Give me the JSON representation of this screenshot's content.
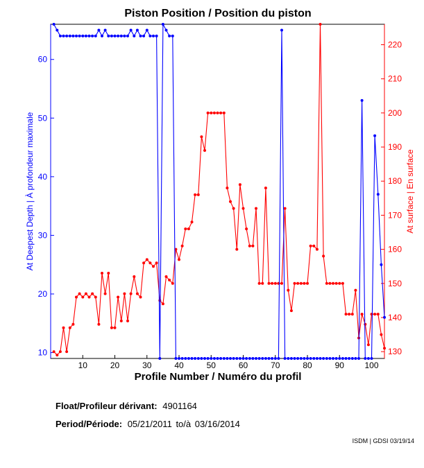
{
  "chart_data": {
    "type": "line",
    "title": "Piston Position / Position du piston",
    "xlabel": "Profile Number / Numéro du profil",
    "ylabel_left": "At Deepest Depth | À profondeur maximale",
    "ylabel_right": "At surface | En surface",
    "xlim": [
      0,
      104
    ],
    "ylim_left": [
      9,
      66
    ],
    "ylim_right": [
      128,
      226
    ],
    "x_ticks": [
      "10",
      "20",
      "30",
      "40",
      "50",
      "60",
      "70",
      "80",
      "90",
      "100"
    ],
    "y_left_ticks": [
      "10",
      "20",
      "30",
      "40",
      "50",
      "60"
    ],
    "y_right_ticks": [
      "130",
      "140",
      "150",
      "160",
      "170",
      "180",
      "190",
      "200",
      "210",
      "220"
    ],
    "grid": false,
    "colors": {
      "left_series": "#0000ff",
      "right_series": "#ff0000",
      "axis": "#000000"
    },
    "series": [
      {
        "name": "At Deepest Depth",
        "axis": "left",
        "x": [
          1,
          2,
          3,
          4,
          5,
          6,
          7,
          8,
          9,
          10,
          11,
          12,
          13,
          14,
          15,
          16,
          17,
          18,
          19,
          20,
          21,
          22,
          23,
          24,
          25,
          26,
          27,
          28,
          29,
          30,
          31,
          32,
          33,
          34,
          35,
          36,
          37,
          38,
          39,
          40,
          41,
          42,
          43,
          44,
          45,
          46,
          47,
          48,
          49,
          50,
          51,
          52,
          53,
          54,
          55,
          56,
          57,
          58,
          59,
          60,
          61,
          62,
          63,
          64,
          65,
          66,
          67,
          68,
          69,
          70,
          71,
          72,
          73,
          74,
          75,
          76,
          77,
          78,
          79,
          80,
          81,
          82,
          83,
          84,
          85,
          86,
          87,
          88,
          89,
          90,
          91,
          92,
          93,
          94,
          95,
          96,
          97,
          98,
          99,
          100,
          101,
          102,
          103,
          104
        ],
        "values": [
          66,
          65,
          64,
          64,
          64,
          64,
          64,
          64,
          64,
          64,
          64,
          64,
          64,
          64,
          65,
          64,
          65,
          64,
          64,
          64,
          64,
          64,
          64,
          64,
          65,
          64,
          65,
          64,
          64,
          65,
          64,
          64,
          64,
          9,
          66,
          65,
          64,
          64,
          9,
          9,
          9,
          9,
          9,
          9,
          9,
          9,
          9,
          9,
          9,
          9,
          9,
          9,
          9,
          9,
          9,
          9,
          9,
          9,
          9,
          9,
          9,
          9,
          9,
          9,
          9,
          9,
          9,
          9,
          9,
          9,
          9,
          65,
          9,
          9,
          9,
          9,
          9,
          9,
          9,
          9,
          9,
          9,
          9,
          9,
          9,
          9,
          9,
          9,
          9,
          9,
          9,
          9,
          9,
          9,
          9,
          9,
          53,
          9,
          9,
          9,
          47,
          37,
          25,
          16
        ]
      },
      {
        "name": "At surface",
        "axis": "right",
        "x": [
          1,
          2,
          3,
          4,
          5,
          6,
          7,
          8,
          9,
          10,
          11,
          12,
          13,
          14,
          15,
          16,
          17,
          18,
          19,
          20,
          21,
          22,
          23,
          24,
          25,
          26,
          27,
          28,
          29,
          30,
          31,
          32,
          33,
          34,
          35,
          36,
          37,
          38,
          39,
          40,
          41,
          42,
          43,
          44,
          45,
          46,
          47,
          48,
          49,
          50,
          51,
          52,
          53,
          54,
          55,
          56,
          57,
          58,
          59,
          60,
          61,
          62,
          63,
          64,
          65,
          66,
          67,
          68,
          69,
          70,
          71,
          72,
          73,
          74,
          75,
          76,
          77,
          78,
          79,
          80,
          81,
          82,
          83,
          84,
          85,
          86,
          87,
          88,
          89,
          90,
          91,
          92,
          93,
          94,
          95,
          96,
          97,
          98,
          99,
          100,
          101,
          102,
          103,
          104
        ],
        "values": [
          130,
          129,
          130,
          137,
          130,
          137,
          138,
          146,
          147,
          146,
          147,
          146,
          147,
          146,
          138,
          153,
          147,
          153,
          137,
          137,
          146,
          139,
          147,
          139,
          147,
          152,
          147,
          146,
          156,
          157,
          156,
          155,
          156,
          145,
          144,
          152,
          151,
          150,
          160,
          157,
          161,
          166,
          166,
          168,
          176,
          176,
          193,
          189,
          200,
          200,
          200,
          200,
          200,
          200,
          178,
          174,
          172,
          160,
          179,
          172,
          166,
          161,
          161,
          172,
          150,
          150,
          178,
          150,
          150,
          150,
          150,
          150,
          172,
          148,
          142,
          150,
          150,
          150,
          150,
          150,
          161,
          161,
          160,
          229,
          158,
          150,
          150,
          150,
          150,
          150,
          150,
          141,
          141,
          141,
          148,
          134,
          141,
          138,
          132,
          141,
          141,
          141,
          135,
          131
        ]
      }
    ]
  },
  "info": {
    "float_label": "Float/Profileur dérivant:",
    "float_id": "4901164",
    "period_label": "Period/Période:",
    "period_start": "05/21/2011",
    "period_sep": "to/à",
    "period_end": "03/16/2014"
  },
  "credit": "ISDM | GDSI 03/19/14"
}
